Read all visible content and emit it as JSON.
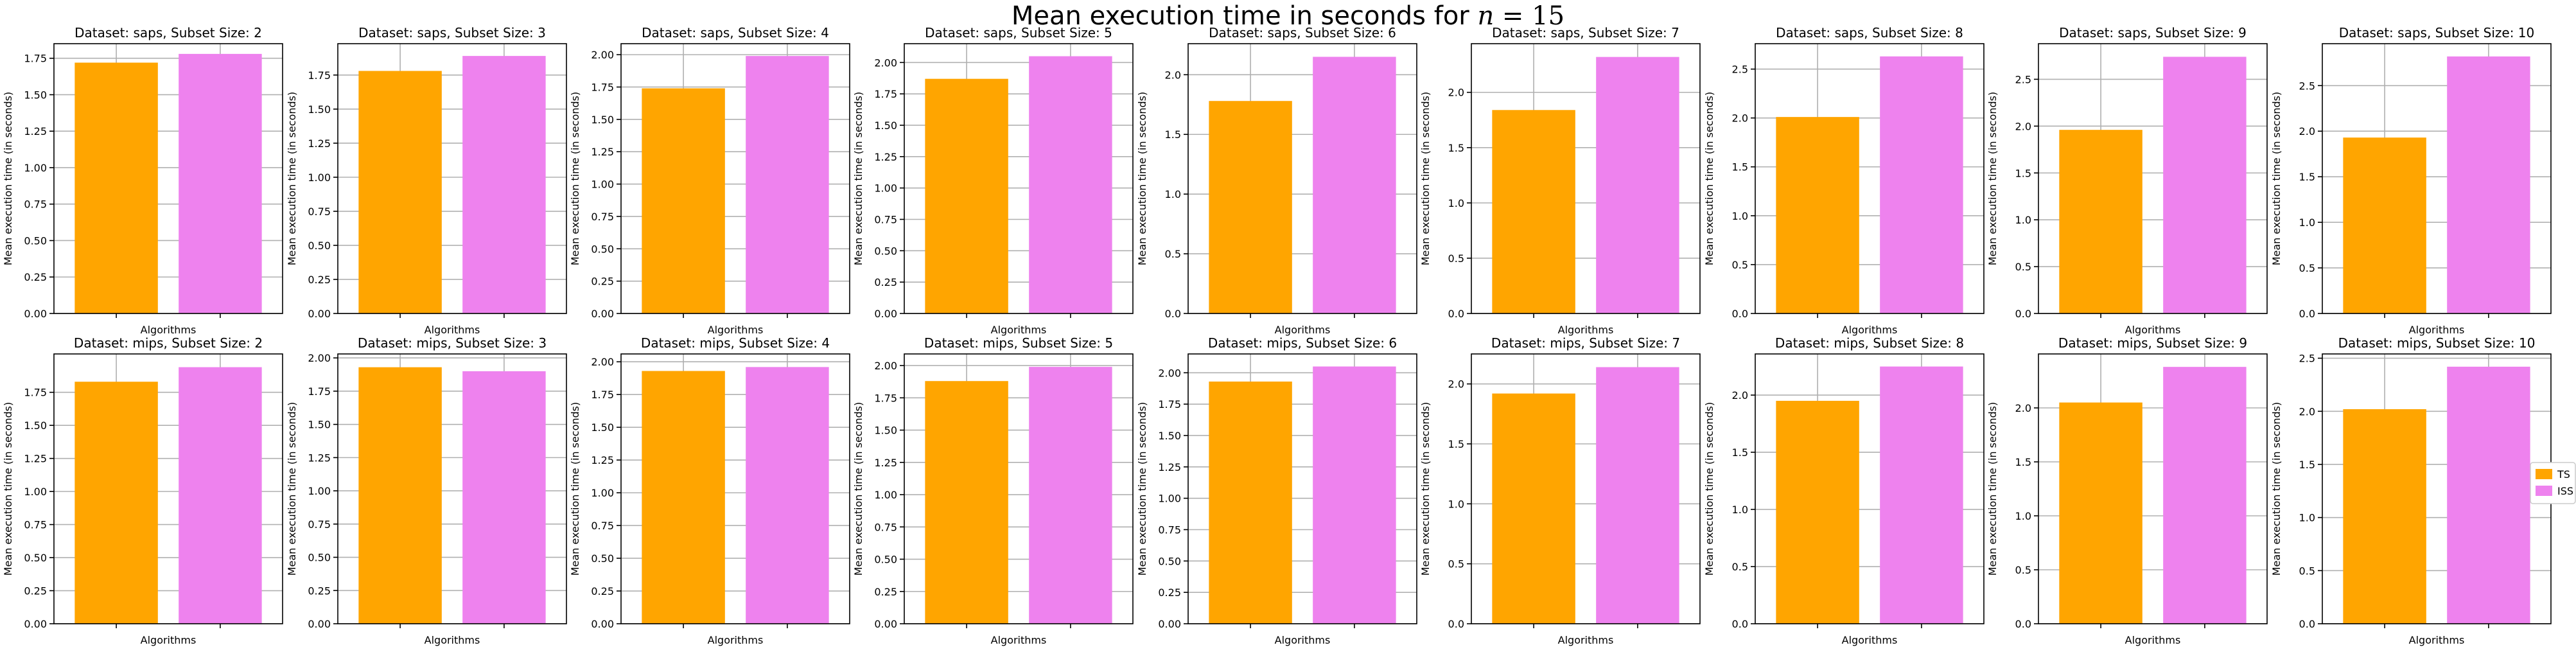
{
  "suptitle": {
    "prefix": "Mean execution time in seconds for ",
    "var": "n",
    "eq": " = ",
    "val": "15"
  },
  "colors": {
    "TS": "#FFA500",
    "ISS": "#EE82EE",
    "grid": "#b0b0b0",
    "axis": "#000000"
  },
  "legend": {
    "placement": "right",
    "entries": [
      "TS",
      "ISS"
    ]
  },
  "chart_data": [
    {
      "type": "bar",
      "title": "Dataset: saps, Subset Size: 2",
      "xlabel": "Algorithms",
      "ylabel": "Mean execution time (in seconds)",
      "categories": [
        "TS",
        "ISS"
      ],
      "values": [
        1.72,
        1.78
      ],
      "ylim": [
        0,
        1.85
      ],
      "yticks": [
        0.0,
        0.25,
        0.5,
        0.75,
        1.0,
        1.25,
        1.5,
        1.75
      ],
      "ytick_labels": [
        "0.00",
        "0.25",
        "0.50",
        "0.75",
        "1.00",
        "1.25",
        "1.50",
        "1.75"
      ],
      "grid": true
    },
    {
      "type": "bar",
      "title": "Dataset: saps, Subset Size: 3",
      "xlabel": "Algorithms",
      "ylabel": "Mean execution time (in seconds)",
      "categories": [
        "TS",
        "ISS"
      ],
      "values": [
        1.78,
        1.89
      ],
      "ylim": [
        0,
        1.98
      ],
      "yticks": [
        0.0,
        0.25,
        0.5,
        0.75,
        1.0,
        1.25,
        1.5,
        1.75
      ],
      "ytick_labels": [
        "0.00",
        "0.25",
        "0.50",
        "0.75",
        "1.00",
        "1.25",
        "1.50",
        "1.75"
      ],
      "grid": true
    },
    {
      "type": "bar",
      "title": "Dataset: saps, Subset Size: 4",
      "xlabel": "Algorithms",
      "ylabel": "Mean execution time (in seconds)",
      "categories": [
        "TS",
        "ISS"
      ],
      "values": [
        1.74,
        1.99
      ],
      "ylim": [
        0,
        2.085
      ],
      "yticks": [
        0.0,
        0.25,
        0.5,
        0.75,
        1.0,
        1.25,
        1.5,
        1.75,
        2.0
      ],
      "ytick_labels": [
        "0.00",
        "0.25",
        "0.50",
        "0.75",
        "1.00",
        "1.25",
        "1.50",
        "1.75",
        "2.00"
      ],
      "grid": true
    },
    {
      "type": "bar",
      "title": "Dataset: saps, Subset Size: 5",
      "xlabel": "Algorithms",
      "ylabel": "Mean execution time (in seconds)",
      "categories": [
        "TS",
        "ISS"
      ],
      "values": [
        1.87,
        2.05
      ],
      "ylim": [
        0,
        2.15
      ],
      "yticks": [
        0.0,
        0.25,
        0.5,
        0.75,
        1.0,
        1.25,
        1.5,
        1.75,
        2.0
      ],
      "ytick_labels": [
        "0.00",
        "0.25",
        "0.50",
        "0.75",
        "1.00",
        "1.25",
        "1.50",
        "1.75",
        "2.00"
      ],
      "grid": true
    },
    {
      "type": "bar",
      "title": "Dataset: saps, Subset Size: 6",
      "xlabel": "Algorithms",
      "ylabel": "Mean execution time (in seconds)",
      "categories": [
        "TS",
        "ISS"
      ],
      "values": [
        1.78,
        2.15
      ],
      "ylim": [
        0,
        2.26
      ],
      "yticks": [
        0.0,
        0.5,
        1.0,
        1.5,
        2.0
      ],
      "ytick_labels": [
        "0.0",
        "0.5",
        "1.0",
        "1.5",
        "2.0"
      ],
      "grid": true
    },
    {
      "type": "bar",
      "title": "Dataset: saps, Subset Size: 7",
      "xlabel": "Algorithms",
      "ylabel": "Mean execution time (in seconds)",
      "categories": [
        "TS",
        "ISS"
      ],
      "values": [
        1.84,
        2.32
      ],
      "ylim": [
        0,
        2.44
      ],
      "yticks": [
        0.0,
        0.5,
        1.0,
        1.5,
        2.0
      ],
      "ytick_labels": [
        "0.0",
        "0.5",
        "1.0",
        "1.5",
        "2.0"
      ],
      "grid": true
    },
    {
      "type": "bar",
      "title": "Dataset: saps, Subset Size: 8",
      "xlabel": "Algorithms",
      "ylabel": "Mean execution time (in seconds)",
      "categories": [
        "TS",
        "ISS"
      ],
      "values": [
        2.01,
        2.63
      ],
      "ylim": [
        0,
        2.76
      ],
      "yticks": [
        0.0,
        0.5,
        1.0,
        1.5,
        2.0,
        2.5
      ],
      "ytick_labels": [
        "0.0",
        "0.5",
        "1.0",
        "1.5",
        "2.0",
        "2.5"
      ],
      "grid": true
    },
    {
      "type": "bar",
      "title": "Dataset: saps, Subset Size: 9",
      "xlabel": "Algorithms",
      "ylabel": "Mean execution time (in seconds)",
      "categories": [
        "TS",
        "ISS"
      ],
      "values": [
        1.96,
        2.74
      ],
      "ylim": [
        0,
        2.88
      ],
      "yticks": [
        0.0,
        0.5,
        1.0,
        1.5,
        2.0,
        2.5
      ],
      "ytick_labels": [
        "0.0",
        "0.5",
        "1.0",
        "1.5",
        "2.0",
        "2.5"
      ],
      "grid": true
    },
    {
      "type": "bar",
      "title": "Dataset: saps, Subset Size: 10",
      "xlabel": "Algorithms",
      "ylabel": "Mean execution time (in seconds)",
      "categories": [
        "TS",
        "ISS"
      ],
      "values": [
        1.93,
        2.82
      ],
      "ylim": [
        0,
        2.96
      ],
      "yticks": [
        0.0,
        0.5,
        1.0,
        1.5,
        2.0,
        2.5
      ],
      "ytick_labels": [
        "0.0",
        "0.5",
        "1.0",
        "1.5",
        "2.0",
        "2.5"
      ],
      "grid": true
    },
    {
      "type": "bar",
      "title": "Dataset: mips, Subset Size: 2",
      "xlabel": "Algorithms",
      "ylabel": "Mean execution time (in seconds)",
      "categories": [
        "TS",
        "ISS"
      ],
      "values": [
        1.83,
        1.94
      ],
      "ylim": [
        0,
        2.04
      ],
      "yticks": [
        0.0,
        0.25,
        0.5,
        0.75,
        1.0,
        1.25,
        1.5,
        1.75
      ],
      "ytick_labels": [
        "0.00",
        "0.25",
        "0.50",
        "0.75",
        "1.00",
        "1.25",
        "1.50",
        "1.75"
      ],
      "grid": true
    },
    {
      "type": "bar",
      "title": "Dataset: mips, Subset Size: 3",
      "xlabel": "Algorithms",
      "ylabel": "Mean execution time (in seconds)",
      "categories": [
        "TS",
        "ISS"
      ],
      "values": [
        1.93,
        1.9
      ],
      "ylim": [
        0,
        2.03
      ],
      "yticks": [
        0.0,
        0.25,
        0.5,
        0.75,
        1.0,
        1.25,
        1.5,
        1.75,
        2.0
      ],
      "ytick_labels": [
        "0.00",
        "0.25",
        "0.50",
        "0.75",
        "1.00",
        "1.25",
        "1.50",
        "1.75",
        "2.00"
      ],
      "grid": true
    },
    {
      "type": "bar",
      "title": "Dataset: mips, Subset Size: 4",
      "xlabel": "Algorithms",
      "ylabel": "Mean execution time (in seconds)",
      "categories": [
        "TS",
        "ISS"
      ],
      "values": [
        1.93,
        1.96
      ],
      "ylim": [
        0,
        2.06
      ],
      "yticks": [
        0.0,
        0.25,
        0.5,
        0.75,
        1.0,
        1.25,
        1.5,
        1.75,
        2.0
      ],
      "ytick_labels": [
        "0.00",
        "0.25",
        "0.50",
        "0.75",
        "1.00",
        "1.25",
        "1.50",
        "1.75",
        "2.00"
      ],
      "grid": true
    },
    {
      "type": "bar",
      "title": "Dataset: mips, Subset Size: 5",
      "xlabel": "Algorithms",
      "ylabel": "Mean execution time (in seconds)",
      "categories": [
        "TS",
        "ISS"
      ],
      "values": [
        1.88,
        1.99
      ],
      "ylim": [
        0,
        2.09
      ],
      "yticks": [
        0.0,
        0.25,
        0.5,
        0.75,
        1.0,
        1.25,
        1.5,
        1.75,
        2.0
      ],
      "ytick_labels": [
        "0.00",
        "0.25",
        "0.50",
        "0.75",
        "1.00",
        "1.25",
        "1.50",
        "1.75",
        "2.00"
      ],
      "grid": true
    },
    {
      "type": "bar",
      "title": "Dataset: mips, Subset Size: 6",
      "xlabel": "Algorithms",
      "ylabel": "Mean execution time (in seconds)",
      "categories": [
        "TS",
        "ISS"
      ],
      "values": [
        1.93,
        2.05
      ],
      "ylim": [
        0,
        2.15
      ],
      "yticks": [
        0.0,
        0.25,
        0.5,
        0.75,
        1.0,
        1.25,
        1.5,
        1.75,
        2.0
      ],
      "ytick_labels": [
        "0.00",
        "0.25",
        "0.50",
        "0.75",
        "1.00",
        "1.25",
        "1.50",
        "1.75",
        "2.00"
      ],
      "grid": true
    },
    {
      "type": "bar",
      "title": "Dataset: mips, Subset Size: 7",
      "xlabel": "Algorithms",
      "ylabel": "Mean execution time (in seconds)",
      "categories": [
        "TS",
        "ISS"
      ],
      "values": [
        1.92,
        2.14
      ],
      "ylim": [
        0,
        2.25
      ],
      "yticks": [
        0.0,
        0.5,
        1.0,
        1.5,
        2.0
      ],
      "ytick_labels": [
        "0.0",
        "0.5",
        "1.0",
        "1.5",
        "2.0"
      ],
      "grid": true
    },
    {
      "type": "bar",
      "title": "Dataset: mips, Subset Size: 8",
      "xlabel": "Algorithms",
      "ylabel": "Mean execution time (in seconds)",
      "categories": [
        "TS",
        "ISS"
      ],
      "values": [
        1.95,
        2.25
      ],
      "ylim": [
        0,
        2.36
      ],
      "yticks": [
        0.0,
        0.5,
        1.0,
        1.5,
        2.0
      ],
      "ytick_labels": [
        "0.0",
        "0.5",
        "1.0",
        "1.5",
        "2.0"
      ],
      "grid": true
    },
    {
      "type": "bar",
      "title": "Dataset: mips, Subset Size: 9",
      "xlabel": "Algorithms",
      "ylabel": "Mean execution time (in seconds)",
      "categories": [
        "TS",
        "ISS"
      ],
      "values": [
        2.05,
        2.38
      ],
      "ylim": [
        0,
        2.5
      ],
      "yticks": [
        0.0,
        0.5,
        1.0,
        1.5,
        2.0
      ],
      "ytick_labels": [
        "0.0",
        "0.5",
        "1.0",
        "1.5",
        "2.0"
      ],
      "grid": true
    },
    {
      "type": "bar",
      "title": "Dataset: mips, Subset Size: 10",
      "xlabel": "Algorithms",
      "ylabel": "Mean execution time (in seconds)",
      "categories": [
        "TS",
        "ISS"
      ],
      "values": [
        2.02,
        2.42
      ],
      "ylim": [
        0,
        2.54
      ],
      "yticks": [
        0.0,
        0.5,
        1.0,
        1.5,
        2.0,
        2.5
      ],
      "ytick_labels": [
        "0.0",
        "0.5",
        "1.0",
        "1.5",
        "2.0",
        "2.5"
      ],
      "grid": true
    }
  ]
}
